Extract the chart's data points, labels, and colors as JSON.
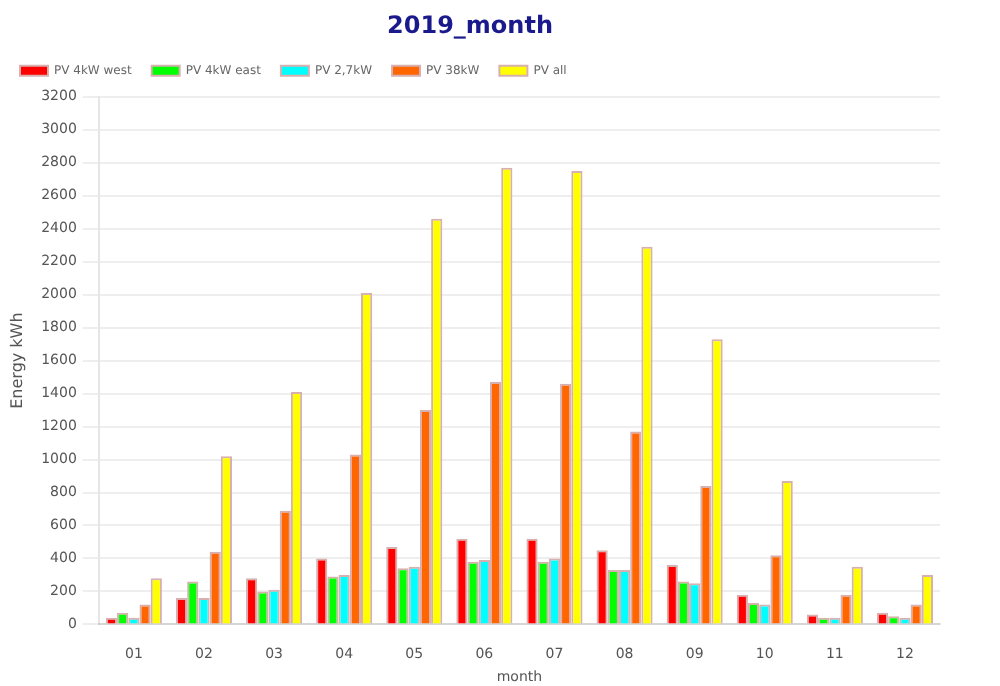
{
  "chart_data": {
    "type": "bar",
    "title": "2019_month",
    "xlabel": "month",
    "ylabel": "Energy kWh",
    "categories": [
      "01",
      "02",
      "03",
      "04",
      "05",
      "06",
      "07",
      "08",
      "09",
      "10",
      "11",
      "12"
    ],
    "series": [
      {
        "name": "PV 4kW west",
        "color": "#ff0000",
        "values": [
          40,
          160,
          280,
          400,
          470,
          520,
          520,
          450,
          360,
          180,
          60,
          70
        ]
      },
      {
        "name": "PV 4kW east",
        "color": "#00ff00",
        "values": [
          70,
          260,
          200,
          290,
          340,
          380,
          380,
          330,
          260,
          130,
          40,
          50
        ]
      },
      {
        "name": "PV 2,7kW",
        "color": "#00ffff",
        "values": [
          40,
          160,
          210,
          300,
          350,
          390,
          400,
          330,
          250,
          120,
          40,
          40
        ]
      },
      {
        "name": "PV 38kW",
        "color": "#ff6600",
        "values": [
          120,
          440,
          690,
          1030,
          1300,
          1470,
          1460,
          1170,
          840,
          420,
          180,
          120
        ]
      },
      {
        "name": "PV all",
        "color": "#ffff00",
        "values": [
          280,
          1020,
          1410,
          2010,
          2460,
          2770,
          2750,
          2290,
          1730,
          870,
          350,
          300
        ]
      }
    ],
    "ylim": [
      0,
      3200
    ],
    "yticks": [
      0,
      200,
      400,
      600,
      800,
      1000,
      1200,
      1400,
      1600,
      1800,
      2000,
      2200,
      2400,
      2600,
      2800,
      3000,
      3200
    ],
    "grid": "y",
    "legend": "top left"
  }
}
